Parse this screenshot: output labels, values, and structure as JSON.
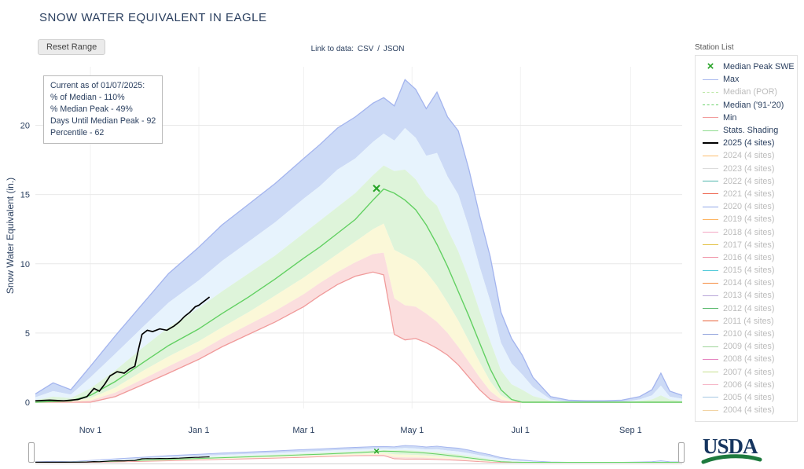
{
  "header": {
    "title": "SNOW WATER EQUIVALENT IN EAGLE"
  },
  "toolbar": {
    "reset_label": "Reset Range"
  },
  "links": {
    "label": "Link to data:",
    "csv": "CSV",
    "sep": "/",
    "json": "JSON"
  },
  "info_box": {
    "lines": [
      "Current as of 01/07/2025:",
      "% of Median - 110%",
      "% Median Peak - 49%",
      "Days Until Median Peak - 92",
      "Percentile - 62"
    ]
  },
  "legend": {
    "title": "Station List",
    "items": [
      {
        "label": "Median Peak SWE",
        "color": "#27a327",
        "marker": "x",
        "muted": false
      },
      {
        "label": "Max",
        "color": "#a8b8ee",
        "marker": "line",
        "muted": false
      },
      {
        "label": "Median (POR)",
        "color": "#b8e6a0",
        "marker": "dash",
        "muted": true
      },
      {
        "label": "Median ('91-'20)",
        "color": "#69d169",
        "marker": "dash",
        "muted": false
      },
      {
        "label": "Min",
        "color": "#f29c9c",
        "marker": "line",
        "muted": false
      },
      {
        "label": "Stats. Shading",
        "color": "#90dc90",
        "marker": "line",
        "muted": false
      },
      {
        "label": "2025 (4 sites)",
        "color": "#000000",
        "marker": "line",
        "muted": false,
        "bold": true
      },
      {
        "label": "2024 (4 sites)",
        "color": "#fdbf6f",
        "marker": "line",
        "muted": true
      },
      {
        "label": "2023 (4 sites)",
        "color": "#dcdcdc",
        "marker": "line",
        "muted": true
      },
      {
        "label": "2022 (4 sites)",
        "color": "#4db6ac",
        "marker": "line",
        "muted": true
      },
      {
        "label": "2021 (4 sites)",
        "color": "#ef6c57",
        "marker": "line",
        "muted": true
      },
      {
        "label": "2020 (4 sites)",
        "color": "#92a8e8",
        "marker": "line",
        "muted": true
      },
      {
        "label": "2019 (4 sites)",
        "color": "#fdb462",
        "marker": "line",
        "muted": true
      },
      {
        "label": "2018 (4 sites)",
        "color": "#f4a7c3",
        "marker": "line",
        "muted": true
      },
      {
        "label": "2017 (4 sites)",
        "color": "#e3c244",
        "marker": "line",
        "muted": true
      },
      {
        "label": "2016 (4 sites)",
        "color": "#ef8fa3",
        "marker": "line",
        "muted": true
      },
      {
        "label": "2015 (4 sites)",
        "color": "#4dc8d8",
        "marker": "line",
        "muted": true
      },
      {
        "label": "2014 (4 sites)",
        "color": "#f68c3f",
        "marker": "line",
        "muted": true
      },
      {
        "label": "2013 (4 sites)",
        "color": "#b9a6d9",
        "marker": "line",
        "muted": true
      },
      {
        "label": "2012 (4 sites)",
        "color": "#57b86a",
        "marker": "line",
        "muted": true
      },
      {
        "label": "2011 (4 sites)",
        "color": "#e8633a",
        "marker": "line",
        "muted": true
      },
      {
        "label": "2010 (4 sites)",
        "color": "#8fa2dc",
        "marker": "line",
        "muted": true
      },
      {
        "label": "2009 (4 sites)",
        "color": "#9fd49a",
        "marker": "line",
        "muted": true
      },
      {
        "label": "2008 (4 sites)",
        "color": "#e584c0",
        "marker": "line",
        "muted": true
      },
      {
        "label": "2007 (4 sites)",
        "color": "#c8e08e",
        "marker": "line",
        "muted": true
      },
      {
        "label": "2006 (4 sites)",
        "color": "#f6b8c8",
        "marker": "line",
        "muted": true
      },
      {
        "label": "2005 (4 sites)",
        "color": "#a5c8e4",
        "marker": "line",
        "muted": true
      },
      {
        "label": "2004 (4 sites)",
        "color": "#f2d4a4",
        "marker": "line",
        "muted": true
      }
    ]
  },
  "usda": {
    "label": "USDA"
  },
  "chart_data": {
    "type": "area",
    "title": "SNOW WATER EQUIVALENT IN EAGLE",
    "xlabel": "",
    "ylabel": "Snow Water Equivalent (in.)",
    "x_unit": "day of water year (Oct 1 = day 0)",
    "ylim": [
      0,
      24
    ],
    "y_ticks": [
      0,
      5,
      10,
      15,
      20
    ],
    "x_ticks": [
      {
        "label": "Nov 1",
        "day": 31
      },
      {
        "label": "Jan 1",
        "day": 92
      },
      {
        "label": "Mar 1",
        "day": 151
      },
      {
        "label": "May 1",
        "day": 212
      },
      {
        "label": "Jul 1",
        "day": 273
      },
      {
        "label": "Sep 1",
        "day": 335
      }
    ],
    "days": [
      0,
      10,
      20,
      31,
      45,
      61,
      75,
      92,
      105,
      120,
      135,
      151,
      160,
      170,
      180,
      190,
      196,
      202,
      208,
      214,
      220,
      226,
      232,
      238,
      244,
      250,
      256,
      262,
      268,
      274,
      280,
      290,
      300,
      310,
      320,
      330,
      340,
      347,
      352,
      357,
      364
    ],
    "series": {
      "max": [
        0.6,
        1.4,
        0.9,
        2.6,
        4.8,
        7.2,
        9.3,
        11.2,
        12.8,
        14.3,
        15.8,
        17.6,
        18.6,
        19.8,
        20.6,
        21.6,
        22.0,
        21.4,
        23.3,
        22.6,
        21.2,
        22.4,
        20.6,
        19.6,
        16.8,
        13.5,
        10.5,
        6.5,
        4.6,
        3.4,
        1.8,
        0.4,
        0.15,
        0.1,
        0.1,
        0.15,
        0.4,
        0.9,
        2.1,
        0.8,
        0.5
      ],
      "p90": [
        0.35,
        0.8,
        0.55,
        1.8,
        3.5,
        5.5,
        7.2,
        8.8,
        10.2,
        11.6,
        13.0,
        14.7,
        15.6,
        16.8,
        17.6,
        18.8,
        19.4,
        18.9,
        19.8,
        19.1,
        17.8,
        18.0,
        16.3,
        15.0,
        12.6,
        9.8,
        7.3,
        4.3,
        2.8,
        2.0,
        1.1,
        0.2,
        0,
        0,
        0,
        0,
        0.2,
        0.5,
        1.2,
        0.4,
        0.25
      ],
      "p70": [
        0.15,
        0.4,
        0.3,
        1.0,
        2.3,
        4.0,
        5.4,
        6.8,
        8.0,
        9.3,
        10.6,
        12.2,
        13.1,
        14.1,
        15.1,
        16.4,
        17.1,
        16.7,
        16.8,
        16.1,
        14.9,
        14.2,
        12.5,
        10.9,
        8.9,
        6.6,
        4.4,
        2.3,
        1.3,
        0.9,
        0.45,
        0.1,
        0,
        0,
        0,
        0,
        0.1,
        0.2,
        0.5,
        0.2,
        0.1
      ],
      "median": [
        0,
        0.05,
        0.1,
        0.5,
        1.5,
        2.9,
        4.1,
        5.3,
        6.4,
        7.6,
        8.9,
        10.4,
        11.2,
        12.2,
        13.2,
        14.6,
        15.4,
        15.1,
        14.6,
        13.9,
        12.8,
        11.4,
        9.8,
        8.0,
        6.2,
        4.3,
        2.4,
        0.9,
        0.2,
        0,
        0,
        0,
        0,
        0,
        0,
        0,
        0,
        0,
        0,
        0,
        0
      ],
      "p30": [
        0,
        0.03,
        0.06,
        0.3,
        1.05,
        2.3,
        3.3,
        4.4,
        5.4,
        6.5,
        7.7,
        9.0,
        9.8,
        10.7,
        11.6,
        12.5,
        12.9,
        11.0,
        10.6,
        10.2,
        9.4,
        8.4,
        7.2,
        5.9,
        4.4,
        2.9,
        1.5,
        0.5,
        0.1,
        0,
        0,
        0,
        0,
        0,
        0,
        0,
        0,
        0,
        0,
        0,
        0
      ],
      "p10": [
        0,
        0.01,
        0.03,
        0.13,
        0.7,
        1.7,
        2.6,
        3.65,
        4.6,
        5.6,
        6.6,
        7.8,
        8.6,
        9.4,
        10.1,
        10.7,
        10.8,
        7.5,
        7.0,
        6.9,
        6.4,
        5.8,
        5.0,
        4.0,
        2.9,
        1.8,
        0.8,
        0.2,
        0.05,
        0,
        0,
        0,
        0,
        0,
        0,
        0,
        0,
        0,
        0,
        0,
        0
      ],
      "min": [
        0,
        0,
        0,
        0,
        0.4,
        1.3,
        2.1,
        3.1,
        4.0,
        4.9,
        5.8,
        6.9,
        7.7,
        8.5,
        9.1,
        9.4,
        9.2,
        4.9,
        4.5,
        4.6,
        4.3,
        3.9,
        3.4,
        2.7,
        1.8,
        0.9,
        0.2,
        0,
        0,
        0,
        0,
        0,
        0,
        0,
        0,
        0,
        0,
        0,
        0,
        0,
        0
      ]
    },
    "swe_2025": {
      "label": "2025 (4 sites)",
      "days": [
        0,
        8,
        16,
        24,
        29,
        33,
        36,
        39,
        42,
        46,
        50,
        53,
        56,
        58,
        60,
        63,
        66,
        70,
        74,
        78,
        81,
        84,
        87,
        90,
        92,
        94,
        96,
        98
      ],
      "values": [
        0.1,
        0.15,
        0.1,
        0.2,
        0.4,
        1.0,
        0.8,
        1.3,
        1.9,
        2.2,
        2.1,
        2.4,
        2.6,
        3.8,
        4.9,
        5.2,
        5.1,
        5.3,
        5.2,
        5.5,
        5.8,
        6.2,
        6.5,
        6.9,
        7.0,
        7.2,
        7.4,
        7.6
      ]
    },
    "median_peak_marker": {
      "day": 192,
      "value": 15.45,
      "label": "Median Peak SWE"
    },
    "colors": {
      "band_90_max": "#ccdaf6",
      "band_70_90": "#e7f3fd",
      "band_30_70": "#def4da",
      "band_10_30": "#fbf8d8",
      "band_min_10": "#fbdede",
      "max_line": "#a3b4ee",
      "min_line": "#f09a9a",
      "median_line": "#62d062",
      "swe_2025_line": "#000000",
      "marker": "#27a327",
      "grid": "#e9e9e9",
      "vgrid": "#f1f1f1",
      "axis_text": "#2a3f5f"
    },
    "legend_position": "right",
    "grid": true
  }
}
